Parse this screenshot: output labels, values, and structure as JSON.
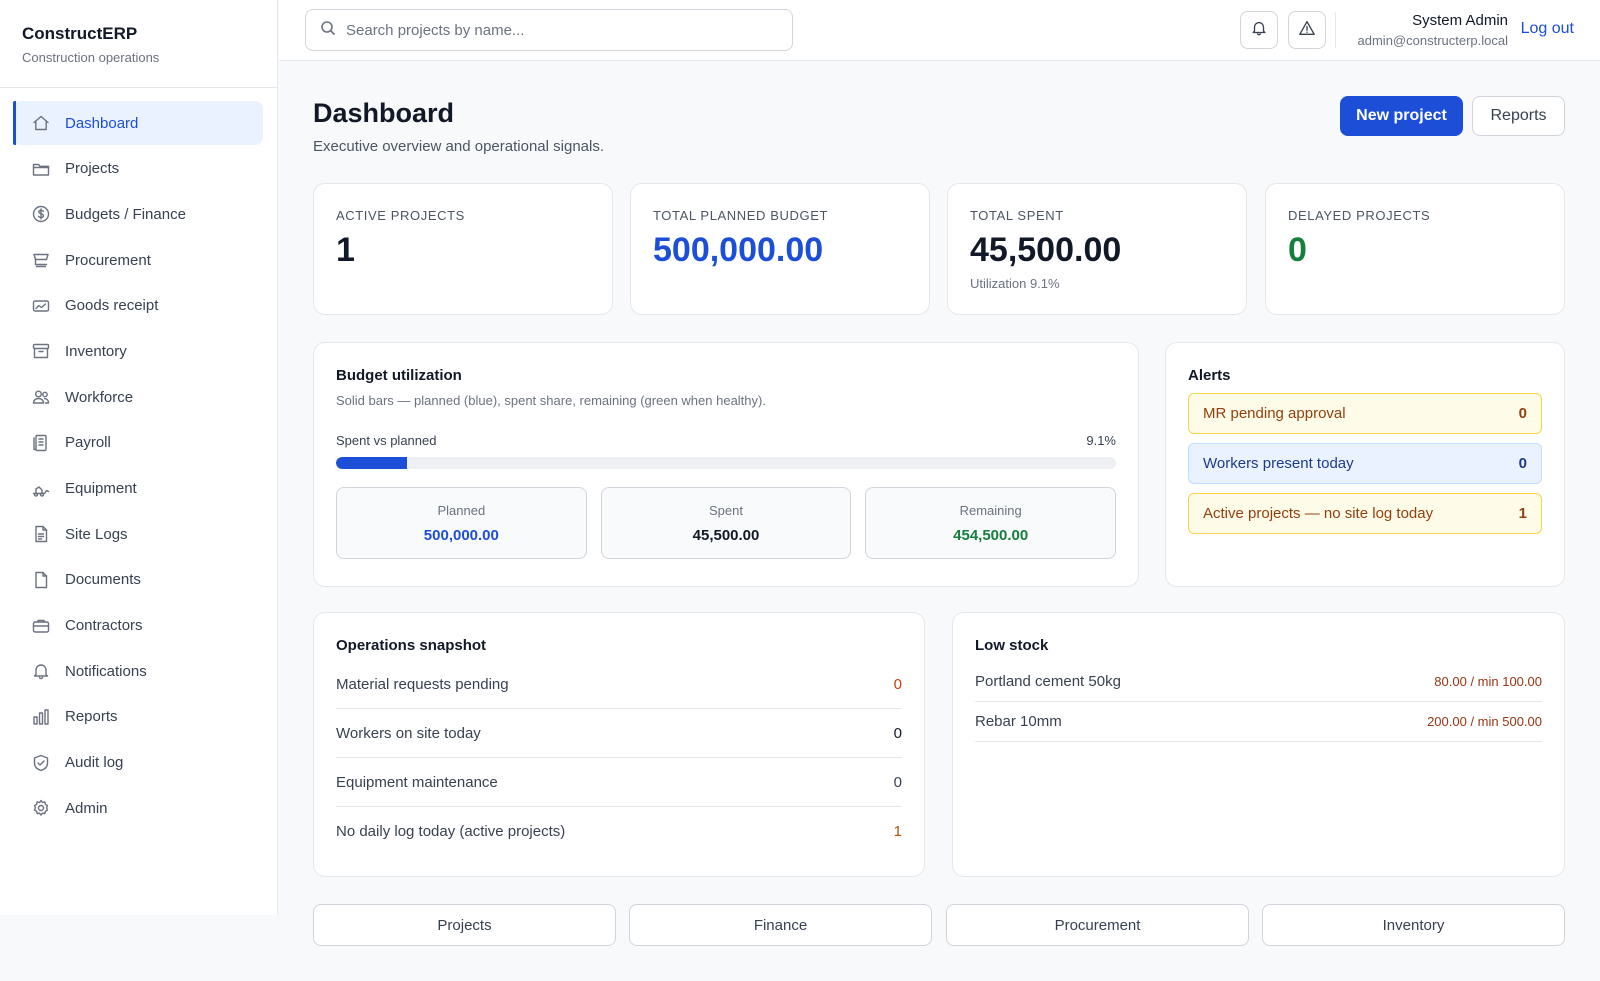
{
  "app": {
    "title": "ConstructERP",
    "subtitle": "Construction operations"
  },
  "sidebar": {
    "items": [
      {
        "label": "Dashboard",
        "icon": "home-icon",
        "active": true
      },
      {
        "label": "Projects",
        "icon": "folder-icon"
      },
      {
        "label": "Budgets / Finance",
        "icon": "dollar-circle-icon"
      },
      {
        "label": "Procurement",
        "icon": "cart-icon"
      },
      {
        "label": "Goods receipt",
        "icon": "receipt-icon"
      },
      {
        "label": "Inventory",
        "icon": "archive-icon"
      },
      {
        "label": "Workforce",
        "icon": "users-icon"
      },
      {
        "label": "Payroll",
        "icon": "payroll-icon"
      },
      {
        "label": "Equipment",
        "icon": "equipment-icon"
      },
      {
        "label": "Site Logs",
        "icon": "file-text-icon"
      },
      {
        "label": "Documents",
        "icon": "document-icon"
      },
      {
        "label": "Contractors",
        "icon": "briefcase-icon"
      },
      {
        "label": "Notifications",
        "icon": "bell-icon"
      },
      {
        "label": "Reports",
        "icon": "bar-chart-icon"
      },
      {
        "label": "Audit log",
        "icon": "shield-icon"
      },
      {
        "label": "Admin",
        "icon": "gear-icon"
      }
    ]
  },
  "topbar": {
    "search_placeholder": "Search projects by name...",
    "user_name": "System Admin",
    "user_email": "admin@constructerp.local",
    "logout_label": "Log out"
  },
  "header": {
    "title": "Dashboard",
    "subtitle": "Executive overview and operational signals.",
    "new_project_label": "New project",
    "reports_label": "Reports"
  },
  "kpis": [
    {
      "label": "ACTIVE PROJECTS",
      "value": "1",
      "color": "#111827"
    },
    {
      "label": "TOTAL PLANNED BUDGET",
      "value": "500,000.00",
      "color": "#1d4ed8"
    },
    {
      "label": "TOTAL SPENT",
      "value": "45,500.00",
      "color": "#111827",
      "note": "Utilization 9.1%"
    },
    {
      "label": "DELAYED PROJECTS",
      "value": "0",
      "color": "#15803d"
    }
  ],
  "budget": {
    "title": "Budget utilization",
    "subtitle": "Solid bars — planned (blue), spent share, remaining (green when healthy).",
    "progress_label": "Spent vs planned",
    "progress_pct_label": "9.1%",
    "progress_fraction": 0.091,
    "planned_label": "Planned",
    "planned_value": "500,000.00",
    "spent_label": "Spent",
    "spent_value": "45,500.00",
    "remaining_label": "Remaining",
    "remaining_value": "454,500.00"
  },
  "alerts": {
    "title": "Alerts",
    "items": [
      {
        "label": "MR pending approval",
        "value": "0",
        "bg": "#fefce8",
        "border": "#fcd34d",
        "color": "#92400e"
      },
      {
        "label": "Workers present today",
        "value": "0",
        "bg": "#eaf2ff",
        "border": "#bfdbfe",
        "color": "#1e3a8a"
      },
      {
        "label": "Active projects — no site log today",
        "value": "1",
        "bg": "#fefce8",
        "border": "#fcd34d",
        "color": "#92400e"
      }
    ]
  },
  "operations": {
    "title": "Operations snapshot",
    "rows": [
      {
        "label": "Material requests pending",
        "value": "0",
        "color": "#c2410c"
      },
      {
        "label": "Workers on site today",
        "value": "0",
        "color": "#111827"
      },
      {
        "label": "Equipment maintenance",
        "value": "0",
        "color": "#374151"
      },
      {
        "label": "No daily log today (active projects)",
        "value": "1",
        "color": "#b45309"
      }
    ]
  },
  "low_stock": {
    "title": "Low stock",
    "rows": [
      {
        "label": "Portland cement 50kg",
        "value": "80.00 / min 100.00"
      },
      {
        "label": "Rebar 10mm",
        "value": "200.00 / min 500.00"
      }
    ],
    "qty_color": "#9a3412"
  },
  "quick_links": [
    "Projects",
    "Finance",
    "Procurement",
    "Inventory"
  ]
}
